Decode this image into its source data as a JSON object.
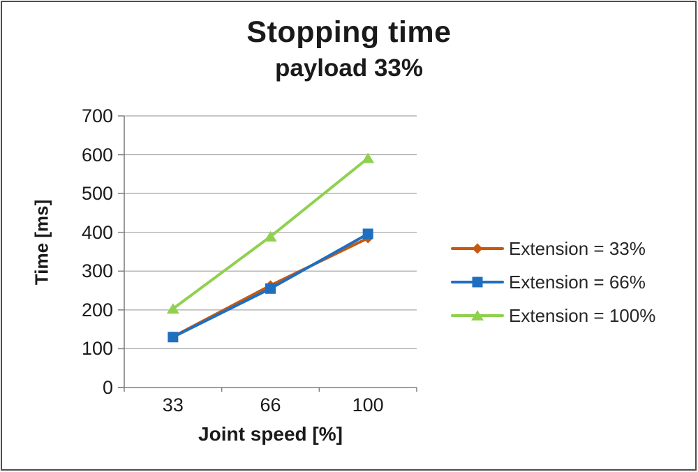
{
  "chart_data": {
    "type": "line",
    "title": "Stopping time",
    "subtitle": "payload 33%",
    "xlabel": "Joint speed [%]",
    "ylabel": "Time [ms]",
    "categories": [
      "33",
      "66",
      "100"
    ],
    "series": [
      {
        "name": "Extension = 33%",
        "marker": "diamond",
        "color": "#C65911",
        "values": [
          131,
          263,
          385
        ]
      },
      {
        "name": "Extension = 66%",
        "marker": "square",
        "color": "#1E6FC0",
        "values": [
          130,
          255,
          396
        ]
      },
      {
        "name": "Extension = 100%",
        "marker": "triangle",
        "color": "#8FD14F",
        "values": [
          203,
          389,
          591
        ]
      }
    ],
    "ylim": [
      0,
      700
    ],
    "ytick_step": 100,
    "yticks": [
      "0",
      "100",
      "200",
      "300",
      "400",
      "500",
      "600",
      "700"
    ],
    "grid": true,
    "legend_position": "right",
    "grid_color": "#A8A8A8",
    "axis_color": "#808080",
    "text_color": "#1a1a1a"
  }
}
